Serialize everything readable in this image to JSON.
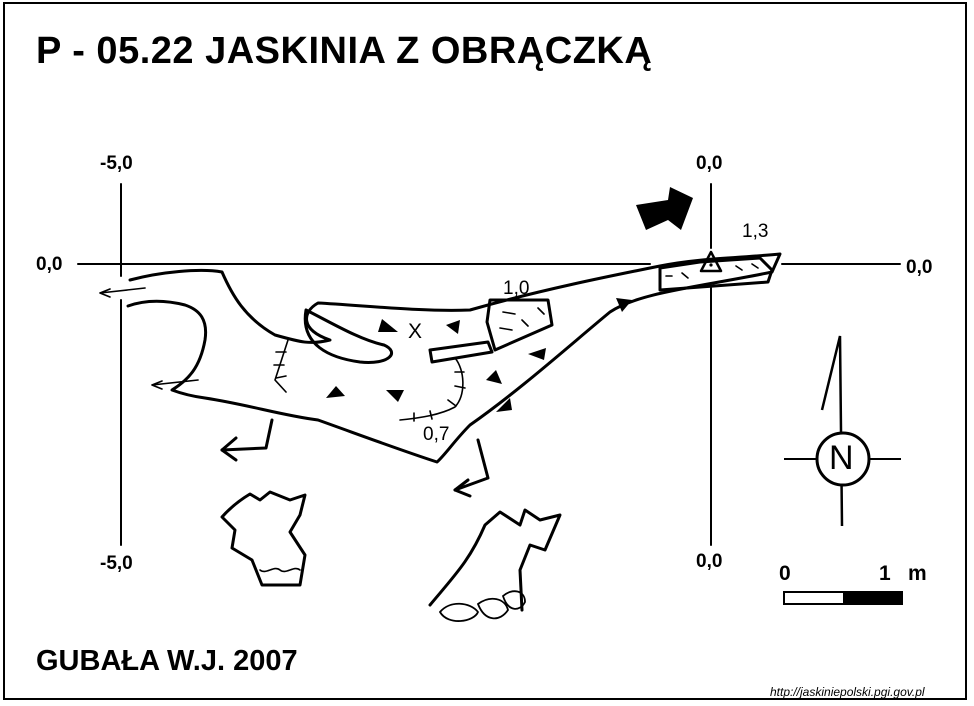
{
  "title": "P - 05.22  JASKINIA Z OBRĄCZKĄ",
  "author": "GUBAŁA W.J. 2007",
  "source": "http://jaskiniepolski.pgi.gov.pl",
  "coordinates": {
    "left_top": "-5,0",
    "left_bottom": "-5,0",
    "left_mid": "0,0",
    "right_top": "0,0",
    "right_bottom": "0,0",
    "right_mid": "0,0"
  },
  "depth_labels": {
    "entrance": "1,3",
    "middle": "1,0",
    "lower": "0,7"
  },
  "point_mark": "X",
  "north_label": "N",
  "scale": {
    "start": "0",
    "end": "1",
    "unit": "m"
  }
}
